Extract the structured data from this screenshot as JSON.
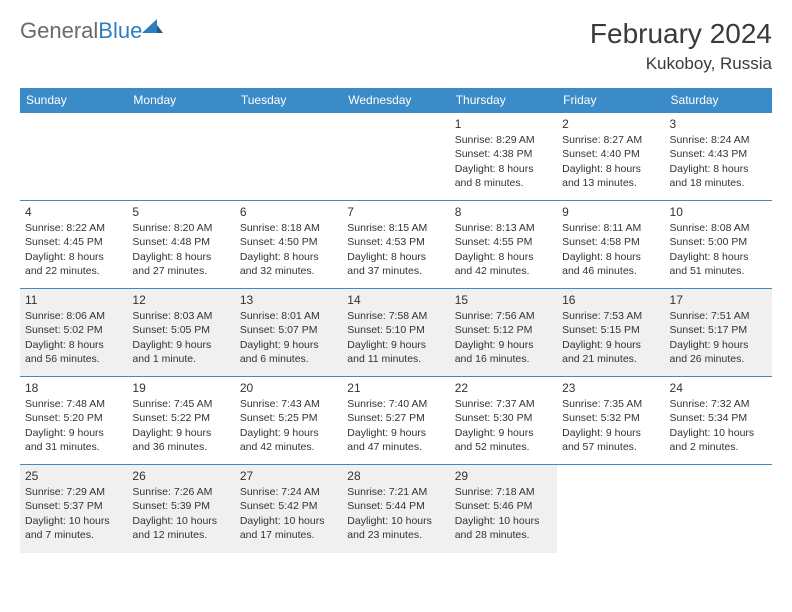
{
  "brand": {
    "part1": "General",
    "part2": "Blue"
  },
  "title": "February 2024",
  "location": "Kukoboy, Russia",
  "colors": {
    "header_bg": "#3b8bc9",
    "header_text": "#ffffff",
    "shade_bg": "#f0f0f0",
    "rule": "#3b8bc9",
    "logo_gray": "#6a6a6a",
    "logo_blue": "#2f7ec1"
  },
  "day_headers": [
    "Sunday",
    "Monday",
    "Tuesday",
    "Wednesday",
    "Thursday",
    "Friday",
    "Saturday"
  ],
  "weeks": [
    {
      "shade": false,
      "days": [
        null,
        null,
        null,
        null,
        {
          "n": "1",
          "sr": "Sunrise: 8:29 AM",
          "ss": "Sunset: 4:38 PM",
          "d1": "Daylight: 8 hours",
          "d2": "and 8 minutes."
        },
        {
          "n": "2",
          "sr": "Sunrise: 8:27 AM",
          "ss": "Sunset: 4:40 PM",
          "d1": "Daylight: 8 hours",
          "d2": "and 13 minutes."
        },
        {
          "n": "3",
          "sr": "Sunrise: 8:24 AM",
          "ss": "Sunset: 4:43 PM",
          "d1": "Daylight: 8 hours",
          "d2": "and 18 minutes."
        }
      ]
    },
    {
      "shade": false,
      "days": [
        {
          "n": "4",
          "sr": "Sunrise: 8:22 AM",
          "ss": "Sunset: 4:45 PM",
          "d1": "Daylight: 8 hours",
          "d2": "and 22 minutes."
        },
        {
          "n": "5",
          "sr": "Sunrise: 8:20 AM",
          "ss": "Sunset: 4:48 PM",
          "d1": "Daylight: 8 hours",
          "d2": "and 27 minutes."
        },
        {
          "n": "6",
          "sr": "Sunrise: 8:18 AM",
          "ss": "Sunset: 4:50 PM",
          "d1": "Daylight: 8 hours",
          "d2": "and 32 minutes."
        },
        {
          "n": "7",
          "sr": "Sunrise: 8:15 AM",
          "ss": "Sunset: 4:53 PM",
          "d1": "Daylight: 8 hours",
          "d2": "and 37 minutes."
        },
        {
          "n": "8",
          "sr": "Sunrise: 8:13 AM",
          "ss": "Sunset: 4:55 PM",
          "d1": "Daylight: 8 hours",
          "d2": "and 42 minutes."
        },
        {
          "n": "9",
          "sr": "Sunrise: 8:11 AM",
          "ss": "Sunset: 4:58 PM",
          "d1": "Daylight: 8 hours",
          "d2": "and 46 minutes."
        },
        {
          "n": "10",
          "sr": "Sunrise: 8:08 AM",
          "ss": "Sunset: 5:00 PM",
          "d1": "Daylight: 8 hours",
          "d2": "and 51 minutes."
        }
      ]
    },
    {
      "shade": true,
      "days": [
        {
          "n": "11",
          "sr": "Sunrise: 8:06 AM",
          "ss": "Sunset: 5:02 PM",
          "d1": "Daylight: 8 hours",
          "d2": "and 56 minutes."
        },
        {
          "n": "12",
          "sr": "Sunrise: 8:03 AM",
          "ss": "Sunset: 5:05 PM",
          "d1": "Daylight: 9 hours",
          "d2": "and 1 minute."
        },
        {
          "n": "13",
          "sr": "Sunrise: 8:01 AM",
          "ss": "Sunset: 5:07 PM",
          "d1": "Daylight: 9 hours",
          "d2": "and 6 minutes."
        },
        {
          "n": "14",
          "sr": "Sunrise: 7:58 AM",
          "ss": "Sunset: 5:10 PM",
          "d1": "Daylight: 9 hours",
          "d2": "and 11 minutes."
        },
        {
          "n": "15",
          "sr": "Sunrise: 7:56 AM",
          "ss": "Sunset: 5:12 PM",
          "d1": "Daylight: 9 hours",
          "d2": "and 16 minutes."
        },
        {
          "n": "16",
          "sr": "Sunrise: 7:53 AM",
          "ss": "Sunset: 5:15 PM",
          "d1": "Daylight: 9 hours",
          "d2": "and 21 minutes."
        },
        {
          "n": "17",
          "sr": "Sunrise: 7:51 AM",
          "ss": "Sunset: 5:17 PM",
          "d1": "Daylight: 9 hours",
          "d2": "and 26 minutes."
        }
      ]
    },
    {
      "shade": false,
      "days": [
        {
          "n": "18",
          "sr": "Sunrise: 7:48 AM",
          "ss": "Sunset: 5:20 PM",
          "d1": "Daylight: 9 hours",
          "d2": "and 31 minutes."
        },
        {
          "n": "19",
          "sr": "Sunrise: 7:45 AM",
          "ss": "Sunset: 5:22 PM",
          "d1": "Daylight: 9 hours",
          "d2": "and 36 minutes."
        },
        {
          "n": "20",
          "sr": "Sunrise: 7:43 AM",
          "ss": "Sunset: 5:25 PM",
          "d1": "Daylight: 9 hours",
          "d2": "and 42 minutes."
        },
        {
          "n": "21",
          "sr": "Sunrise: 7:40 AM",
          "ss": "Sunset: 5:27 PM",
          "d1": "Daylight: 9 hours",
          "d2": "and 47 minutes."
        },
        {
          "n": "22",
          "sr": "Sunrise: 7:37 AM",
          "ss": "Sunset: 5:30 PM",
          "d1": "Daylight: 9 hours",
          "d2": "and 52 minutes."
        },
        {
          "n": "23",
          "sr": "Sunrise: 7:35 AM",
          "ss": "Sunset: 5:32 PM",
          "d1": "Daylight: 9 hours",
          "d2": "and 57 minutes."
        },
        {
          "n": "24",
          "sr": "Sunrise: 7:32 AM",
          "ss": "Sunset: 5:34 PM",
          "d1": "Daylight: 10 hours",
          "d2": "and 2 minutes."
        }
      ]
    },
    {
      "shade": true,
      "days": [
        {
          "n": "25",
          "sr": "Sunrise: 7:29 AM",
          "ss": "Sunset: 5:37 PM",
          "d1": "Daylight: 10 hours",
          "d2": "and 7 minutes."
        },
        {
          "n": "26",
          "sr": "Sunrise: 7:26 AM",
          "ss": "Sunset: 5:39 PM",
          "d1": "Daylight: 10 hours",
          "d2": "and 12 minutes."
        },
        {
          "n": "27",
          "sr": "Sunrise: 7:24 AM",
          "ss": "Sunset: 5:42 PM",
          "d1": "Daylight: 10 hours",
          "d2": "and 17 minutes."
        },
        {
          "n": "28",
          "sr": "Sunrise: 7:21 AM",
          "ss": "Sunset: 5:44 PM",
          "d1": "Daylight: 10 hours",
          "d2": "and 23 minutes."
        },
        {
          "n": "29",
          "sr": "Sunrise: 7:18 AM",
          "ss": "Sunset: 5:46 PM",
          "d1": "Daylight: 10 hours",
          "d2": "and 28 minutes."
        },
        null,
        null
      ]
    }
  ]
}
